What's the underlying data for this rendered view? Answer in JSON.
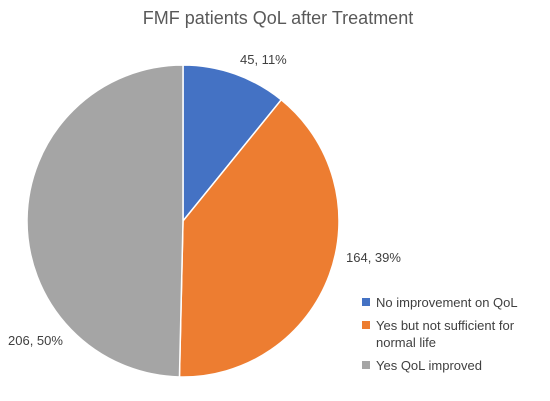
{
  "chart_data": {
    "type": "pie",
    "title": "FMF patients QoL after Treatment",
    "legend_position": "bottom-right",
    "slices": [
      {
        "name": "No improvement on QoL",
        "value": 45,
        "percent": "11%",
        "label": "45, 11%",
        "color": "#4472C4"
      },
      {
        "name": "Yes but not sufficient for normal life",
        "value": 164,
        "percent": "39%",
        "label": "164, 39%",
        "color": "#ED7D31"
      },
      {
        "name": "Yes QoL improved",
        "value": 206,
        "percent": "50%",
        "label": "206, 50%",
        "color": "#A5A5A5"
      }
    ]
  }
}
